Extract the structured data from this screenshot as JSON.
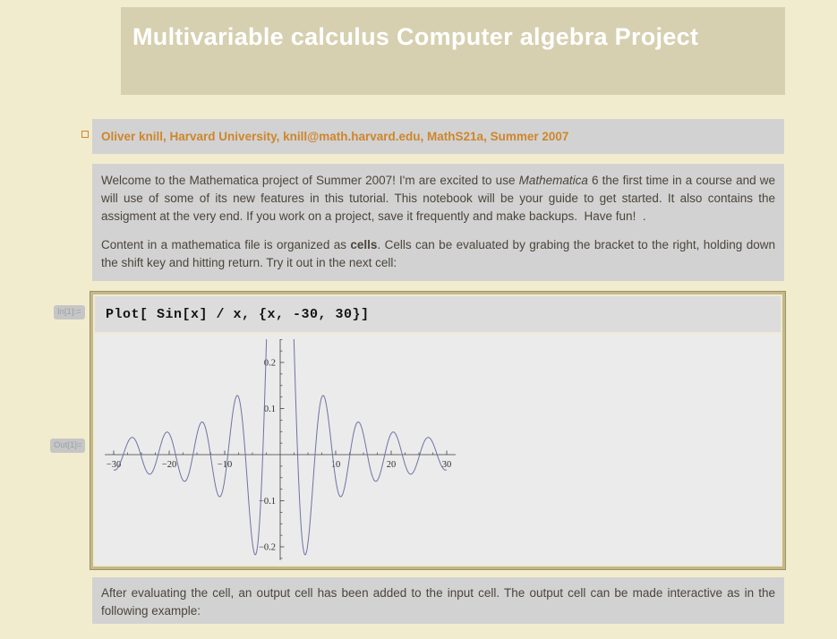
{
  "title": {
    "text": "Multivariable calculus Computer algebra Project"
  },
  "byline": {
    "text": "Oliver knill, Harvard University, knill@math.harvard.edu, MathS21a, Summer 2007"
  },
  "intro": {
    "welcome": {
      "before_italic": "Welcome to the Mathematica project of Summer 2007! I'm are excited to use ",
      "italic": "Mathematica",
      "after_italic": " 6 the first time in a course and we will use of some of its new features in this tutorial. This notebook will be your guide to get started. It also contains the assigment at the very end. If you work on a project, save it frequently and make backups.  Have fun!  ."
    },
    "cells_para": {
      "before_bold": "Content in a mathematica file is organized as ",
      "bold": "cells",
      "after_bold": ". Cells can be evaluated by grabing the bracket to the right, holding down the shift key and hitting return. Try it out in the next cell:"
    }
  },
  "input_cell": {
    "label": "In[1]:=",
    "code": "Plot[ Sin[x] / x, {x, -30, 30}]"
  },
  "output_cell": {
    "label": "Out[1]="
  },
  "chart_data": {
    "type": "line",
    "title": "",
    "expression": "Sin[x]/x",
    "x_range": [
      -30,
      30
    ],
    "sample_step": 0.05,
    "y_clip_top": 0.2504,
    "y_clip_bottom": -0.2295,
    "x_ticks": [
      -30,
      -20,
      -10,
      10,
      20,
      30
    ],
    "x_tick_labels": [
      "−30",
      "−20",
      "−10",
      "10",
      "20",
      "30"
    ],
    "y_ticks": [
      -0.2,
      -0.1,
      0.1,
      0.2
    ],
    "y_tick_labels": [
      "−0.2",
      "−0.1",
      "0.1",
      "0.2"
    ],
    "x_minor_step": 2.5,
    "y_minor_step": 0.025,
    "axis_x_extent": [
      -31.6,
      31.6
    ],
    "curve_color": "#6e73a3",
    "axis_color": "#3f3f3f",
    "legend": "none",
    "grid": "off"
  },
  "closing": {
    "text": "After evaluating the cell, an output cell has been added to the input cell. The output cell can be made interactive as in the following example:"
  }
}
